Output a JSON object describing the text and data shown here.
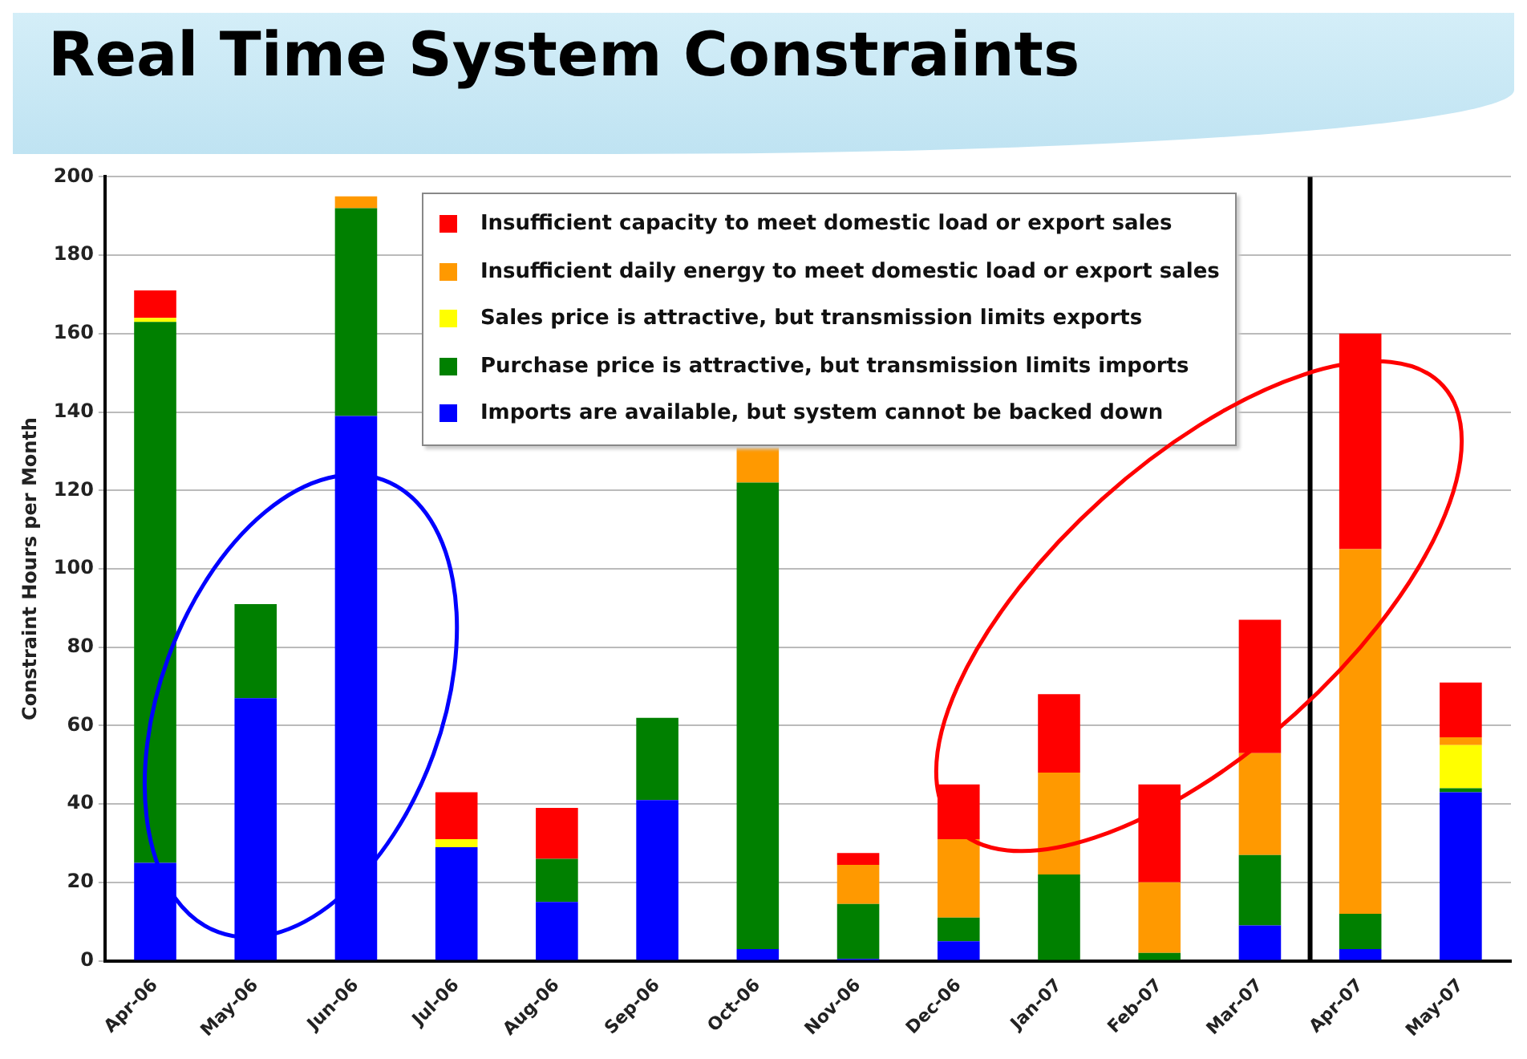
{
  "chart_data": {
    "type": "bar",
    "title": "Real Time System Constraints",
    "ylabel": "Constraint Hours per Month",
    "stacked": true,
    "categories": [
      "Apr-06",
      "May-06",
      "Jun-06",
      "Jul-06",
      "Aug-06",
      "Sep-06",
      "Oct-06",
      "Nov-06",
      "Dec-06",
      "Jan-07",
      "Feb-07",
      "Mar-07",
      "Apr-07",
      "May-07"
    ],
    "series": [
      {
        "name": "Imports are available, but system cannot be backed down",
        "color": "#0000ff",
        "values": [
          25,
          67,
          139,
          29,
          15,
          41,
          3,
          0.5,
          5,
          0,
          0,
          9,
          3,
          43
        ]
      },
      {
        "name": "Purchase price is attractive, but transmission limits imports",
        "color": "#008000",
        "values": [
          138,
          24,
          53,
          0,
          11,
          21,
          119,
          14,
          6,
          22,
          2,
          18,
          9,
          1
        ]
      },
      {
        "name": "Sales price is attractive, but transmission limits exports",
        "color": "#ffff00",
        "values": [
          1,
          0,
          0,
          2,
          0,
          0,
          0,
          0,
          0,
          0,
          0,
          0,
          0,
          11
        ]
      },
      {
        "name": "Insufficient daily energy to meet domestic load or export sales",
        "color": "#ff9900",
        "values": [
          0,
          0,
          3,
          0,
          0,
          0,
          9,
          10,
          20,
          26,
          18,
          26,
          93,
          2
        ]
      },
      {
        "name": "Insufficient capacity to meet domestic load or export sales",
        "color": "#ff0000",
        "values": [
          7,
          0,
          0,
          12,
          13,
          0,
          0,
          3,
          14,
          20,
          25,
          34,
          55,
          14
        ]
      }
    ],
    "ylim": [
      0,
      200
    ],
    "yticks": [
      0,
      20,
      40,
      60,
      80,
      100,
      120,
      140,
      160,
      180,
      200
    ],
    "ref_lines": [
      {
        "axis": "x",
        "value": "Apr-07",
        "color": "#000000"
      }
    ],
    "grid": "y",
    "legend": "top right"
  }
}
